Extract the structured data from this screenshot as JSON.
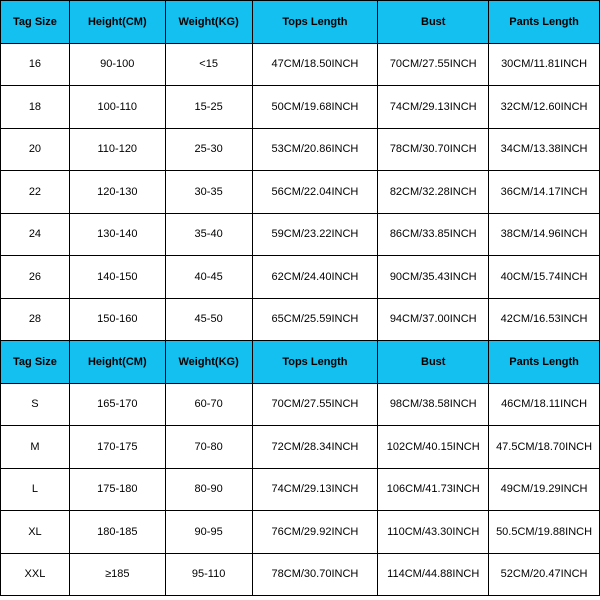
{
  "header_bg": "#14c0f0",
  "columns": [
    "Tag Size",
    "Height(CM)",
    "Weight(KG)",
    "Tops Length",
    "Bust",
    "Pants Length"
  ],
  "rows1": [
    [
      "16",
      "90-100",
      "<15",
      "47CM/18.50INCH",
      "70CM/27.55INCH",
      "30CM/11.81INCH"
    ],
    [
      "18",
      "100-110",
      "15-25",
      "50CM/19.68INCH",
      "74CM/29.13INCH",
      "32CM/12.60INCH"
    ],
    [
      "20",
      "110-120",
      "25-30",
      "53CM/20.86INCH",
      "78CM/30.70INCH",
      "34CM/13.38INCH"
    ],
    [
      "22",
      "120-130",
      "30-35",
      "56CM/22.04INCH",
      "82CM/32.28INCH",
      "36CM/14.17INCH"
    ],
    [
      "24",
      "130-140",
      "35-40",
      "59CM/23.22INCH",
      "86CM/33.85INCH",
      "38CM/14.96INCH"
    ],
    [
      "26",
      "140-150",
      "40-45",
      "62CM/24.40INCH",
      "90CM/35.43INCH",
      "40CM/15.74INCH"
    ],
    [
      "28",
      "150-160",
      "45-50",
      "65CM/25.59INCH",
      "94CM/37.00INCH",
      "42CM/16.53INCH"
    ]
  ],
  "rows2": [
    [
      "S",
      "165-170",
      "60-70",
      "70CM/27.55INCH",
      "98CM/38.58INCH",
      "46CM/18.11INCH"
    ],
    [
      "M",
      "170-175",
      "70-80",
      "72CM/28.34INCH",
      "102CM/40.15INCH",
      "47.5CM/18.70INCH"
    ],
    [
      "L",
      "175-180",
      "80-90",
      "74CM/29.13INCH",
      "106CM/41.73INCH",
      "49CM/19.29INCH"
    ],
    [
      "XL",
      "180-185",
      "90-95",
      "76CM/29.92INCH",
      "110CM/43.30INCH",
      "50.5CM/19.88INCH"
    ],
    [
      "XXL",
      "≥185",
      "95-110",
      "78CM/30.70INCH",
      "114CM/44.88INCH",
      "52CM/20.47INCH"
    ]
  ]
}
